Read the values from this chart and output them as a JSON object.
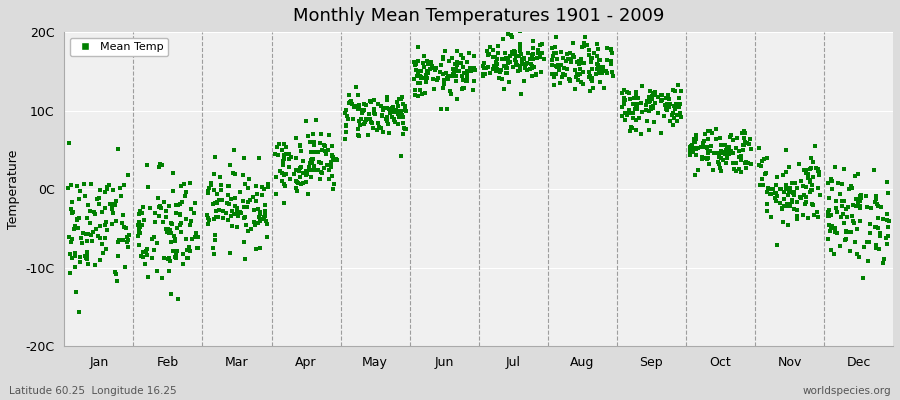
{
  "title": "Monthly Mean Temperatures 1901 - 2009",
  "ylabel": "Temperature",
  "ylim": [
    -20,
    20
  ],
  "yticks": [
    -20,
    -10,
    0,
    10,
    20
  ],
  "ytick_labels": [
    "-20C",
    "-10C",
    "0C",
    "10C",
    "20C"
  ],
  "months": [
    "Jan",
    "Feb",
    "Mar",
    "Apr",
    "May",
    "Jun",
    "Jul",
    "Aug",
    "Sep",
    "Oct",
    "Nov",
    "Dec"
  ],
  "dot_color": "#008000",
  "dot_size": 6,
  "bg_color": "#dcdcdc",
  "plot_bg_color": "#f0f0f0",
  "legend_label": "Mean Temp",
  "bottom_left": "Latitude 60.25  Longitude 16.25",
  "bottom_right": "worldspecies.org",
  "n_years": 109,
  "mean_temps": [
    -5.0,
    -5.5,
    -2.0,
    3.5,
    9.5,
    14.5,
    16.5,
    15.5,
    10.5,
    5.0,
    0.0,
    -3.5
  ],
  "std_temps": [
    4.0,
    4.0,
    2.5,
    2.0,
    1.5,
    1.5,
    1.5,
    1.5,
    1.5,
    1.5,
    2.5,
    3.0
  ],
  "seed": 42
}
